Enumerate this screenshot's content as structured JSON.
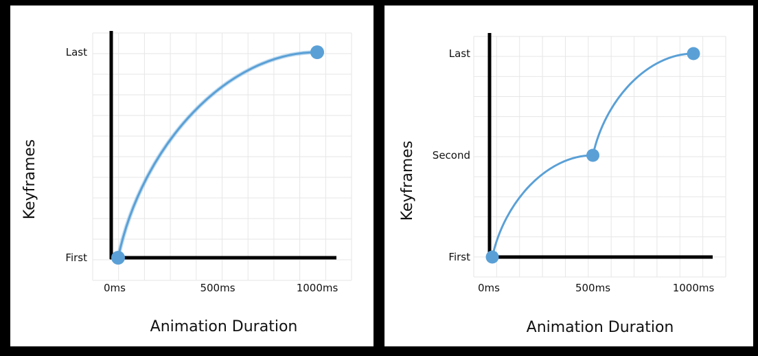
{
  "chart_data": [
    {
      "type": "line",
      "xlabel": "Animation Duration",
      "ylabel": "Keyframes",
      "x_tick_labels": [
        "0ms",
        "500ms",
        "1000ms"
      ],
      "y_tick_labels": [
        "First",
        "Last"
      ],
      "xlim": [
        0,
        1000
      ],
      "ylim": [
        0,
        1
      ],
      "grid": true,
      "series": [
        {
          "x": [
            0,
            1000
          ],
          "y": [
            0,
            1
          ]
        }
      ],
      "color": "#5aa0d6"
    },
    {
      "type": "line",
      "xlabel": "Animation Duration",
      "ylabel": "Keyframes",
      "x_tick_labels": [
        "0ms",
        "500ms",
        "1000ms"
      ],
      "y_tick_labels": [
        "First",
        "Second",
        "Last"
      ],
      "xlim": [
        0,
        1000
      ],
      "ylim": [
        0,
        2
      ],
      "grid": true,
      "series": [
        {
          "x": [
            0,
            500,
            1000
          ],
          "y": [
            0,
            1,
            2
          ]
        }
      ],
      "color": "#5aa0d6"
    }
  ]
}
